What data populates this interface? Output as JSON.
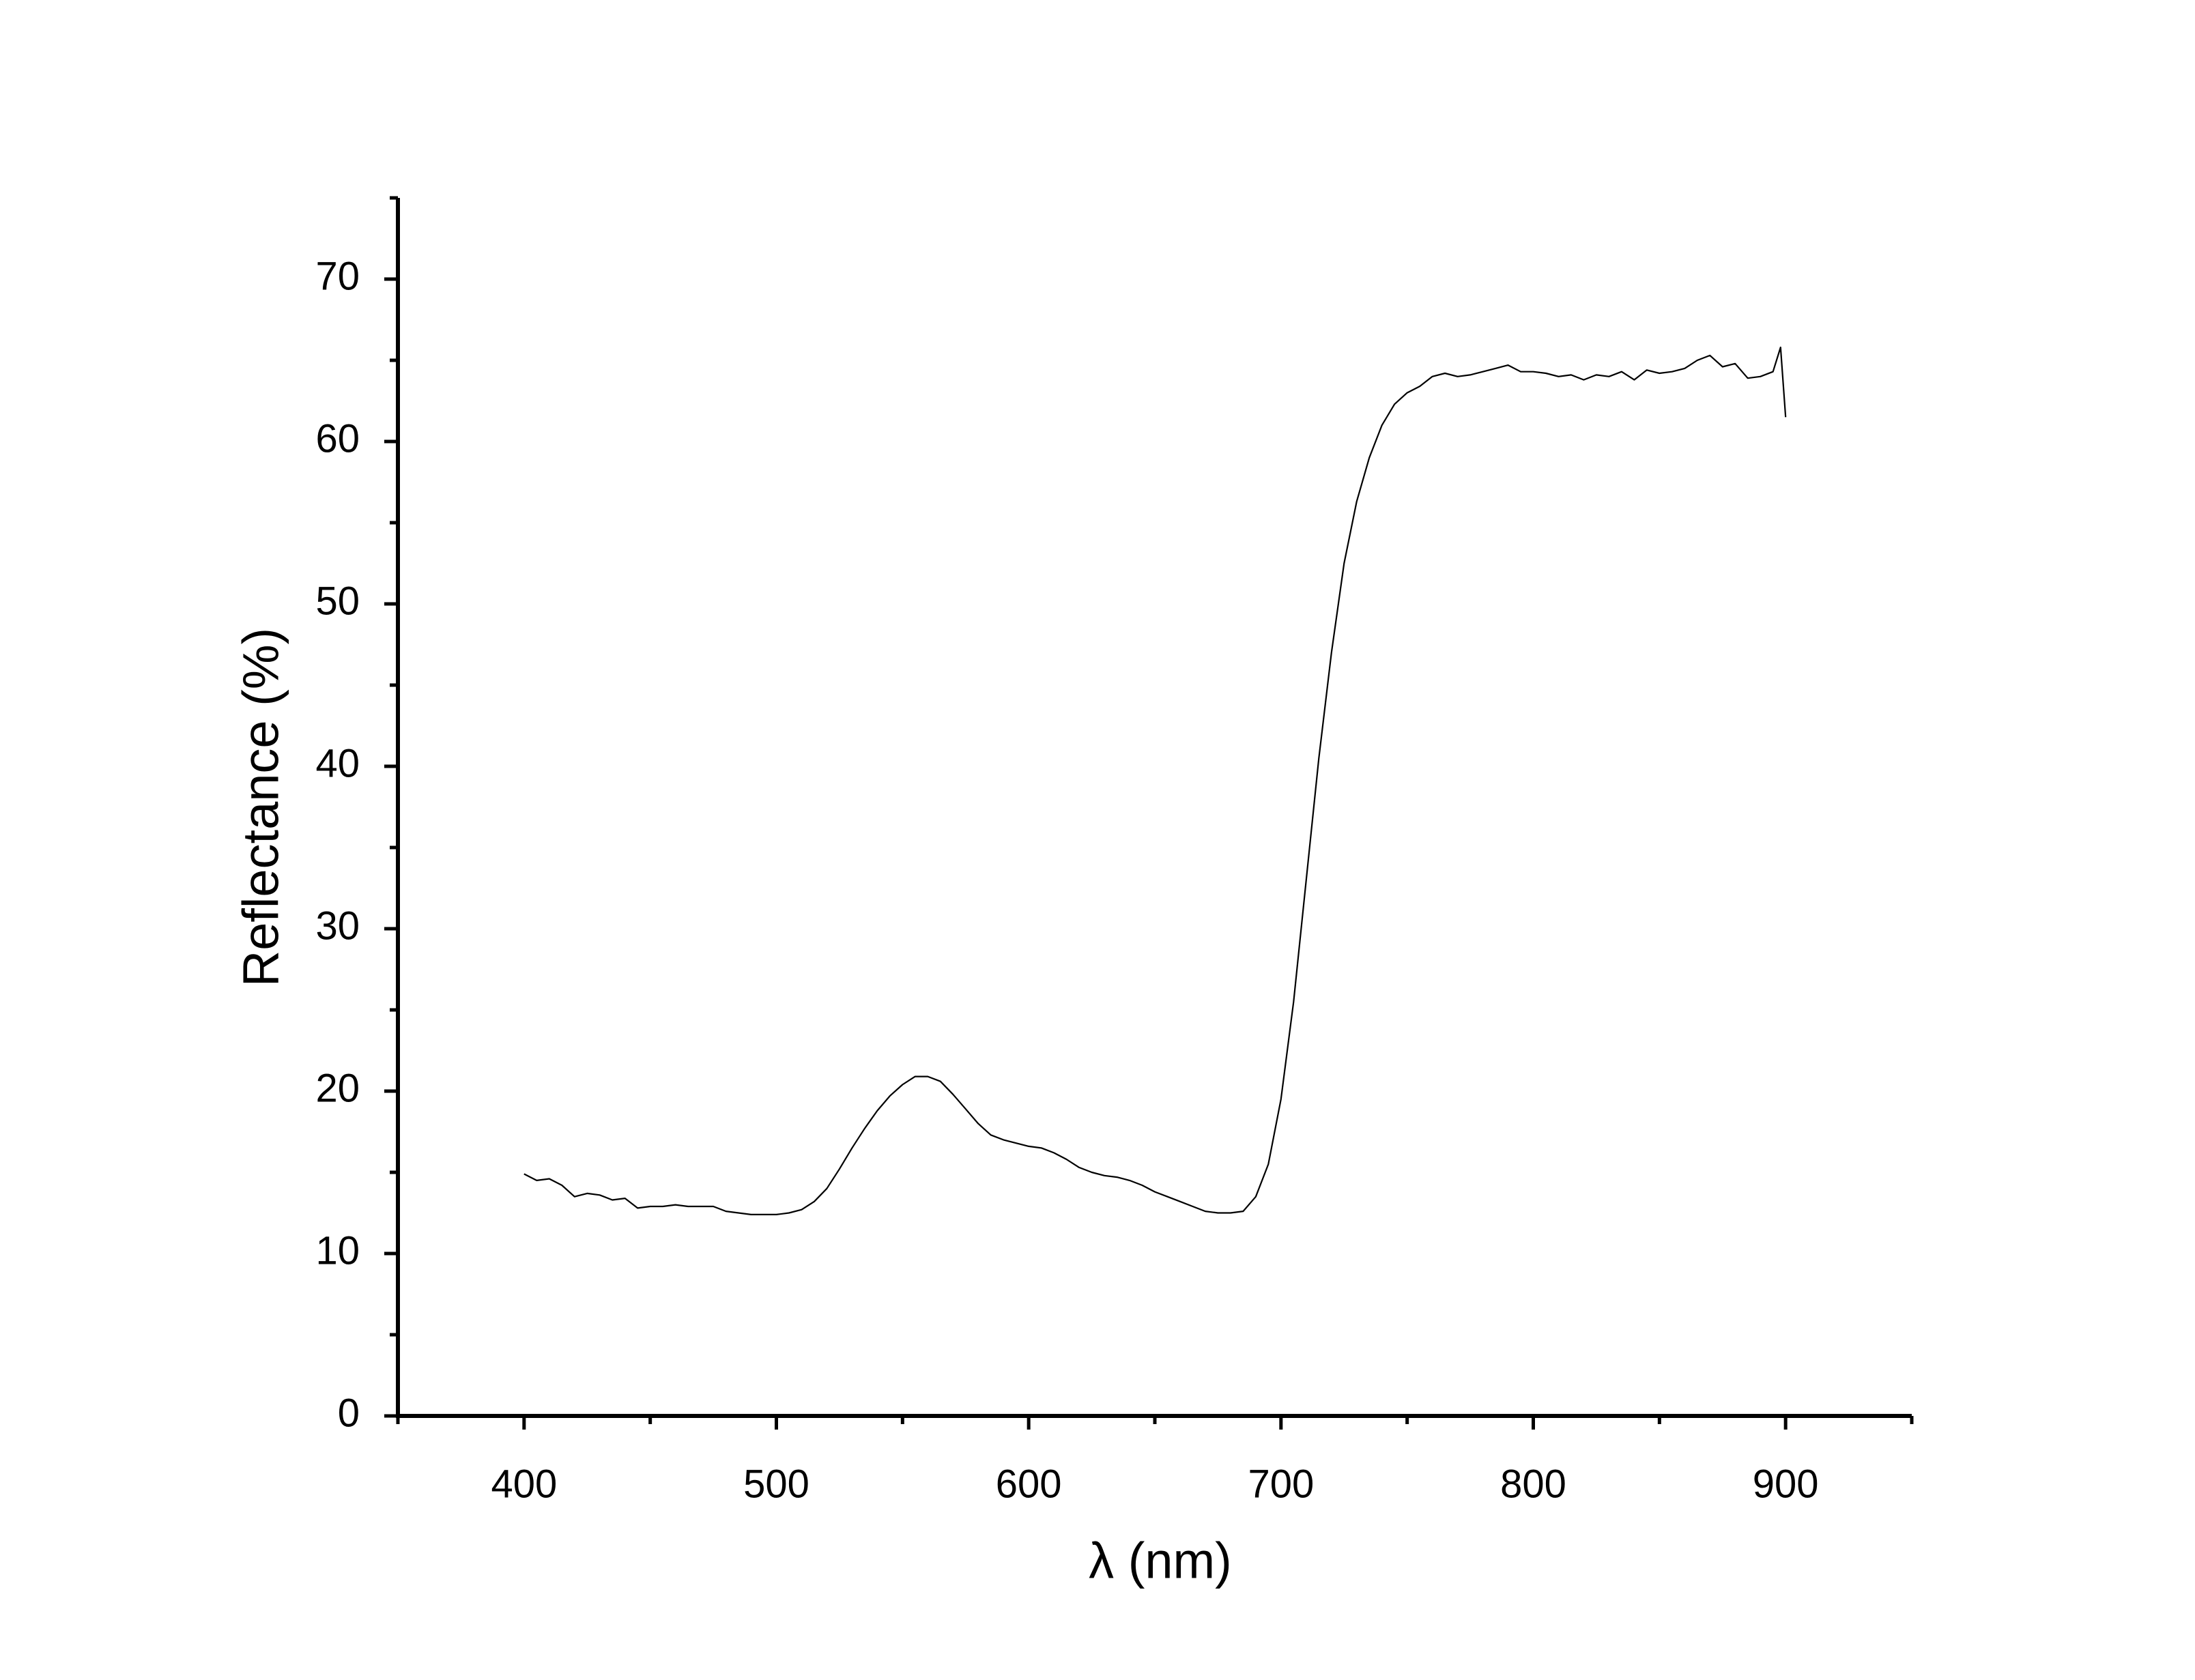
{
  "chart_data": {
    "type": "line",
    "xlabel": "λ (nm)",
    "ylabel": "Reflectance (%)",
    "xlim": [
      350,
      950
    ],
    "xticks": [
      400,
      500,
      600,
      700,
      800,
      900
    ],
    "xminorticks": [
      350,
      450,
      550,
      650,
      750,
      850,
      950
    ],
    "ylim": [
      0,
      75
    ],
    "yticks": [
      0,
      10,
      20,
      30,
      40,
      50,
      60,
      70
    ],
    "yminorticks": [
      5,
      15,
      25,
      35,
      45,
      55,
      65,
      75
    ],
    "grid": false,
    "series": [
      {
        "color": "#000000",
        "x": [
          400,
          405,
          410,
          415,
          420,
          425,
          430,
          435,
          440,
          445,
          450,
          455,
          460,
          465,
          470,
          475,
          480,
          485,
          490,
          495,
          500,
          505,
          510,
          515,
          520,
          525,
          530,
          535,
          540,
          545,
          550,
          555,
          560,
          565,
          570,
          575,
          580,
          585,
          590,
          595,
          600,
          605,
          610,
          615,
          620,
          625,
          630,
          635,
          640,
          645,
          650,
          655,
          660,
          665,
          670,
          675,
          680,
          685,
          690,
          695,
          700,
          705,
          710,
          715,
          720,
          725,
          730,
          735,
          740,
          745,
          750,
          755,
          760,
          765,
          770,
          775,
          780,
          785,
          790,
          795,
          800,
          805,
          810,
          815,
          820,
          825,
          830,
          835,
          840,
          845,
          850,
          855,
          860,
          865,
          870,
          875,
          880,
          885,
          890,
          895,
          898,
          900
        ],
        "values": [
          14.9,
          14.5,
          14.6,
          14.2,
          13.5,
          13.7,
          13.6,
          13.3,
          13.4,
          12.8,
          12.9,
          12.9,
          13.0,
          12.9,
          12.9,
          12.9,
          12.6,
          12.5,
          12.4,
          12.4,
          12.4,
          12.5,
          12.7,
          13.2,
          14.0,
          15.2,
          16.5,
          17.7,
          18.8,
          19.7,
          20.4,
          20.9,
          20.9,
          20.6,
          19.8,
          18.9,
          18.0,
          17.3,
          17.0,
          16.8,
          16.6,
          16.5,
          16.2,
          15.8,
          15.3,
          15.0,
          14.8,
          14.7,
          14.5,
          14.2,
          13.8,
          13.5,
          13.2,
          12.9,
          12.6,
          12.5,
          12.5,
          12.6,
          13.5,
          15.5,
          19.5,
          25.5,
          33,
          40.5,
          47,
          52.5,
          56.3,
          59,
          61.0,
          62.3,
          63.0,
          63.4,
          64.0,
          64.2,
          64.0,
          64.1,
          64.3,
          64.5,
          64.7,
          64.3,
          64.3,
          64.2,
          64.0,
          64.1,
          63.8,
          64.1,
          64.0,
          64.3,
          63.8,
          64.4,
          64.2,
          64.3,
          64.5,
          65.0,
          65.3,
          64.6,
          64.8,
          63.9,
          64.0,
          64.3,
          65.8,
          61.5
        ]
      }
    ]
  }
}
